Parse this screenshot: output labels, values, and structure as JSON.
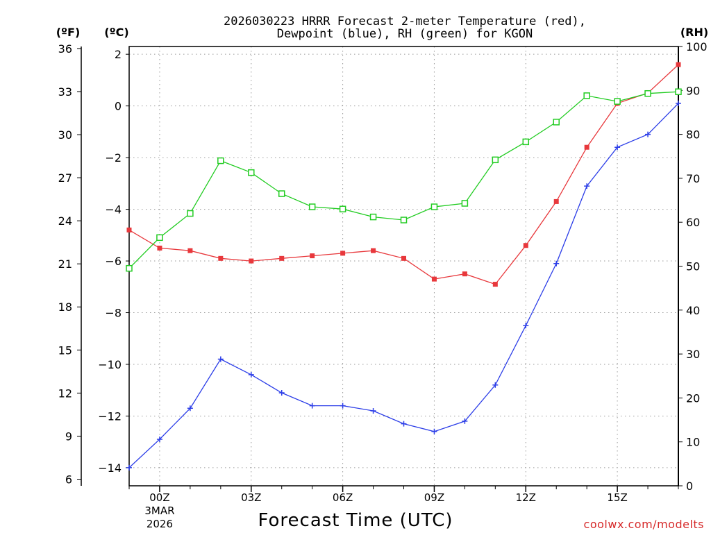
{
  "chart_data": {
    "type": "line",
    "title_line1": "2026030223 HRRR Forecast 2-meter Temperature (red),",
    "title_line2": "Dewpoint (blue), RH (green) for KGON",
    "xlabel": "Forecast Time (UTC)",
    "credit": "coolwx.com/modelts",
    "units": {
      "fahrenheit": "(ºF)",
      "celsius": "(ºC)",
      "rh": "(RH)"
    },
    "x_forecast_hours": [
      -1,
      0,
      1,
      2,
      3,
      4,
      5,
      6,
      7,
      8,
      9,
      10,
      11,
      12,
      13,
      14,
      15,
      16,
      17
    ],
    "x_ticks": [
      {
        "hour": 0,
        "label": "00Z"
      },
      {
        "hour": 3,
        "label": "03Z"
      },
      {
        "hour": 6,
        "label": "06Z"
      },
      {
        "hour": 9,
        "label": "09Z"
      },
      {
        "hour": 12,
        "label": "12Z"
      },
      {
        "hour": 15,
        "label": "15Z"
      }
    ],
    "date_label": [
      "3MAR",
      "2026"
    ],
    "x_range": [
      -1,
      17
    ],
    "celsius_range": [
      -14.7,
      2.3
    ],
    "celsius_ticks": [
      {
        "value": 2,
        "label": "2"
      },
      {
        "value": 0,
        "label": "0"
      },
      {
        "value": -2,
        "label": "−2"
      },
      {
        "value": -4,
        "label": "−4"
      },
      {
        "value": -6,
        "label": "−6"
      },
      {
        "value": -8,
        "label": "−8"
      },
      {
        "value": -10,
        "label": "−10"
      },
      {
        "value": -12,
        "label": "−12"
      },
      {
        "value": -14,
        "label": "−14"
      }
    ],
    "fahrenheit_ticks": [
      {
        "value": 36,
        "label": "36"
      },
      {
        "value": 33,
        "label": "33"
      },
      {
        "value": 30,
        "label": "30"
      },
      {
        "value": 27,
        "label": "27"
      },
      {
        "value": 24,
        "label": "24"
      },
      {
        "value": 21,
        "label": "21"
      },
      {
        "value": 18,
        "label": "18"
      },
      {
        "value": 15,
        "label": "15"
      },
      {
        "value": 12,
        "label": "12"
      },
      {
        "value": 9,
        "label": "9"
      },
      {
        "value": 6,
        "label": "6"
      }
    ],
    "rh_range": [
      0,
      100
    ],
    "rh_ticks": [
      {
        "value": 100,
        "label": "100"
      },
      {
        "value": 90,
        "label": "90"
      },
      {
        "value": 80,
        "label": "80"
      },
      {
        "value": 70,
        "label": "70"
      },
      {
        "value": 60,
        "label": "60"
      },
      {
        "value": 50,
        "label": "50"
      },
      {
        "value": 40,
        "label": "40"
      },
      {
        "value": 30,
        "label": "30"
      },
      {
        "value": 20,
        "label": "20"
      },
      {
        "value": 10,
        "label": "10"
      },
      {
        "value": 0,
        "label": "0"
      }
    ],
    "series": [
      {
        "name": "2-meter Temperature",
        "axis": "celsius",
        "color": "#e8383c",
        "marker": "filled-square",
        "values": [
          -4.8,
          -5.5,
          -5.6,
          -5.9,
          -6.0,
          -5.9,
          -5.8,
          -5.7,
          -5.6,
          -5.9,
          -6.7,
          -6.5,
          -6.9,
          -5.4,
          -3.7,
          -1.6,
          0.1,
          0.5,
          1.6
        ]
      },
      {
        "name": "Dewpoint",
        "axis": "celsius",
        "color": "#2c3ee8",
        "marker": "plus",
        "values": [
          -14.0,
          -12.9,
          -11.7,
          -9.8,
          -10.4,
          -11.1,
          -11.6,
          -11.6,
          -11.8,
          -12.3,
          -12.6,
          -12.2,
          -10.8,
          -8.5,
          -6.1,
          -3.1,
          -1.6,
          -1.1,
          0.1
        ]
      },
      {
        "name": "RH",
        "axis": "rh",
        "color": "#22cc22",
        "marker": "open-square",
        "values": [
          49.5,
          56.5,
          62.0,
          74.0,
          71.3,
          66.5,
          63.5,
          63.0,
          61.2,
          60.5,
          63.5,
          64.3,
          74.2,
          78.3,
          82.8,
          88.8,
          87.5,
          89.3,
          89.7
        ]
      }
    ]
  }
}
